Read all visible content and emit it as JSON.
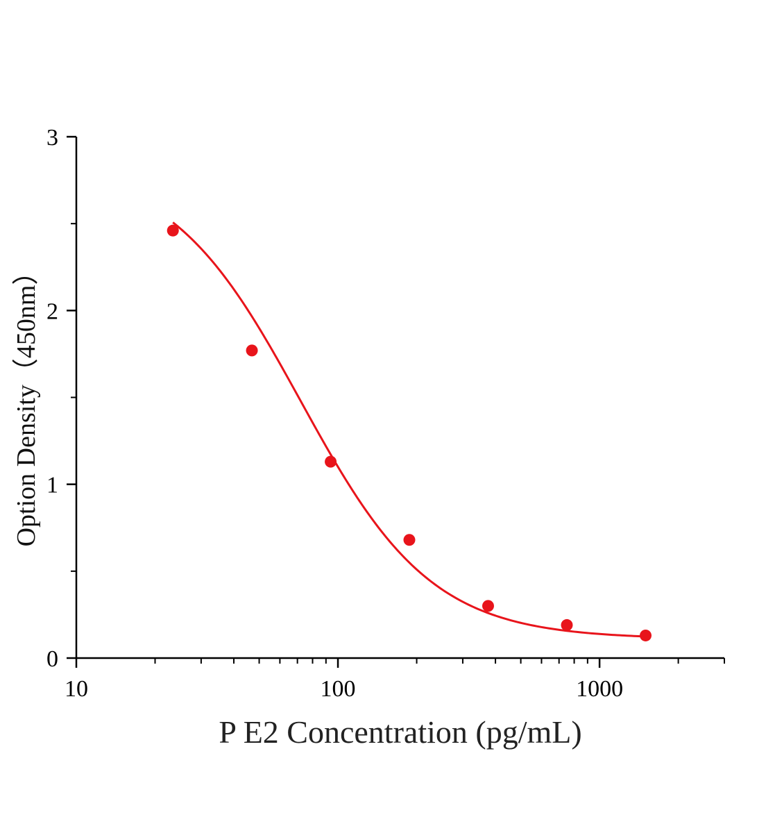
{
  "chart_data": {
    "type": "scatter",
    "xlabel": "P E2 Concentration (pg/mL)",
    "ylabel": "Option Density（450nm）",
    "x_scale": "log",
    "xlim": [
      10,
      3000
    ],
    "ylim": [
      0,
      3
    ],
    "x_major_ticks": [
      {
        "value": 10,
        "label": "10"
      },
      {
        "value": 100,
        "label": "100"
      },
      {
        "value": 1000,
        "label": "1000"
      }
    ],
    "x_minor_ticks": [
      20,
      30,
      40,
      50,
      60,
      70,
      80,
      90,
      200,
      300,
      400,
      500,
      600,
      700,
      800,
      900,
      2000,
      3000
    ],
    "y_major_ticks": [
      {
        "value": 0,
        "label": "0"
      },
      {
        "value": 1,
        "label": "1"
      },
      {
        "value": 2,
        "label": "2"
      },
      {
        "value": 3,
        "label": "3"
      }
    ],
    "y_minor_ticks": [
      0.5,
      1.5,
      2.5
    ],
    "grid": false,
    "series": [
      {
        "kind": "points",
        "color": "#e8141b",
        "x": [
          23.4,
          46.9,
          93.8,
          187.5,
          375,
          750,
          1500
        ],
        "y": [
          2.46,
          1.77,
          1.13,
          0.68,
          0.3,
          0.19,
          0.13
        ]
      },
      {
        "kind": "fit-curve",
        "color": "#e8141b",
        "model": "4PL",
        "params": {
          "A": 2.85,
          "B": 1.73,
          "C": 72,
          "D": 0.11
        },
        "x_range": [
          23.4,
          1500
        ]
      }
    ]
  }
}
